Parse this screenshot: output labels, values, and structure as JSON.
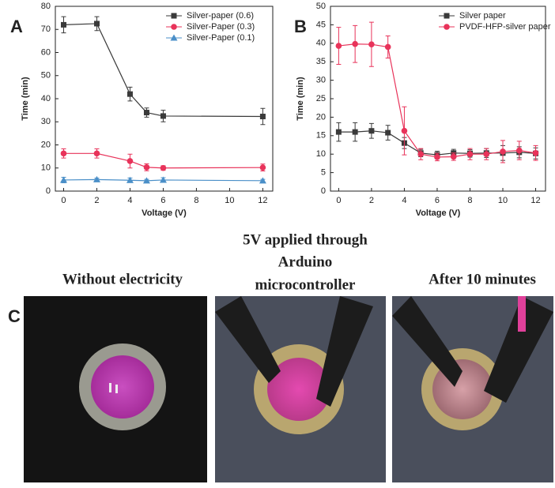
{
  "panel_labels": [
    "A",
    "B",
    "C"
  ],
  "photos": [
    {
      "caption": [
        "Without electricity"
      ]
    },
    {
      "caption": [
        "5V applied through",
        "Arduino",
        "microcontroller"
      ]
    },
    {
      "caption": [
        "After 10 minutes"
      ]
    }
  ],
  "chart_data": [
    {
      "type": "line",
      "x_label": "Voltage (V)",
      "y_label": "Time (min)",
      "x": [
        0,
        2,
        4,
        5,
        6,
        12
      ],
      "xlim": [
        -0.5,
        12.6
      ],
      "xticks": [
        0,
        2,
        4,
        6,
        8,
        10,
        12
      ],
      "ylim": [
        0,
        80
      ],
      "yticks": [
        0,
        10,
        20,
        30,
        40,
        50,
        60,
        70,
        80
      ],
      "legend": "upper right",
      "series": [
        {
          "name": "Silver-paper (0.6)",
          "color": "#3a3a3a",
          "marker": "square",
          "values": [
            72,
            72.5,
            42,
            34,
            32.5,
            32.3
          ],
          "errors": [
            3.5,
            3,
            3,
            2,
            2.5,
            3.5
          ]
        },
        {
          "name": "Silver-Paper (0.3)",
          "color": "#e8335a",
          "marker": "circle",
          "values": [
            16.3,
            16.3,
            13,
            10.3,
            10,
            10.2
          ],
          "errors": [
            2,
            2,
            3,
            1.5,
            1,
            1.5
          ]
        },
        {
          "name": "Silver-Paper (0.1)",
          "color": "#4a8fc8",
          "marker": "triangle",
          "values": [
            4.8,
            5,
            4.7,
            4.5,
            4.8,
            4.5
          ],
          "errors": [
            1.2,
            0.6,
            1,
            0.6,
            1,
            0.6
          ]
        }
      ]
    },
    {
      "type": "line",
      "x_label": "Voltage (V)",
      "y_label": "Time (min)",
      "x": [
        0,
        1,
        2,
        3,
        4,
        5,
        6,
        7,
        8,
        9,
        10,
        11,
        12
      ],
      "xlim": [
        -0.5,
        12.6
      ],
      "xticks": [
        0,
        2,
        4,
        6,
        8,
        10,
        12
      ],
      "ylim": [
        0,
        50
      ],
      "yticks": [
        0,
        5,
        10,
        15,
        20,
        25,
        30,
        35,
        40,
        45,
        50
      ],
      "legend": "upper right",
      "series": [
        {
          "name": "Silver paper",
          "color": "#3a3a3a",
          "marker": "square",
          "values": [
            16,
            16,
            16.3,
            15.8,
            13,
            10.3,
            9.8,
            10.3,
            10.2,
            10.3,
            10.3,
            10.5,
            10.2
          ],
          "errors": [
            2.5,
            2.5,
            2,
            2,
            1.5,
            1,
            1,
            1,
            1,
            1.2,
            2,
            1.5,
            1.5
          ]
        },
        {
          "name": "PVDF-HFP-silver paper",
          "color": "#e8335a",
          "marker": "circle",
          "values": [
            39.3,
            39.8,
            39.7,
            39,
            16.3,
            10,
            9.2,
            9.3,
            10,
            10,
            10.7,
            11,
            10.3
          ],
          "errors": [
            5,
            5,
            6,
            3,
            6.5,
            1.5,
            1,
            1,
            1.5,
            1.5,
            3,
            2.5,
            2
          ]
        }
      ]
    }
  ]
}
